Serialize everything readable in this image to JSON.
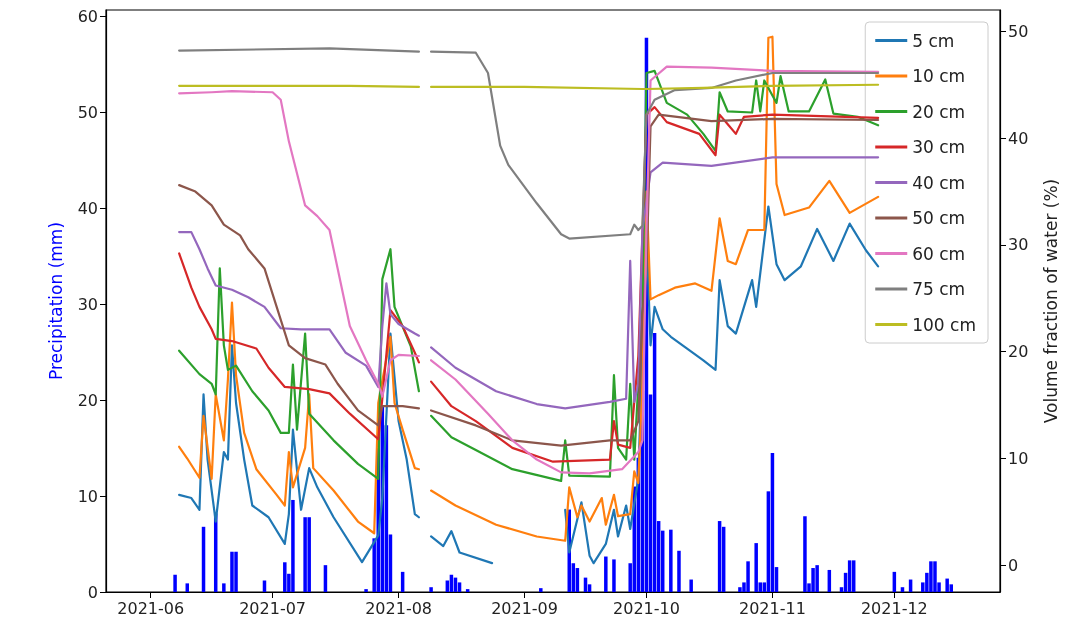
{
  "chart_data": {
    "type": "line",
    "ylabel": "Precipitation (mm)",
    "y2label": "Volume fraction of water (%)",
    "xlim": [
      "2021-05-21",
      "2021-12-27"
    ],
    "xticks": [
      {
        "value": "2021-06-01",
        "label": "2021-06"
      },
      {
        "value": "2021-07-01",
        "label": "2021-07"
      },
      {
        "value": "2021-08-01",
        "label": "2021-08"
      },
      {
        "value": "2021-09-01",
        "label": "2021-09"
      },
      {
        "value": "2021-10-01",
        "label": "2021-10"
      },
      {
        "value": "2021-11-01",
        "label": "2021-11"
      },
      {
        "value": "2021-12-01",
        "label": "2021-12"
      }
    ],
    "ylim": [
      0,
      60.7
    ],
    "yticks": [
      0,
      10,
      20,
      30,
      40,
      50,
      60
    ],
    "y2lim": [
      -2.5,
      52
    ],
    "y2ticks": [
      0,
      10,
      20,
      30,
      40,
      50
    ],
    "legend": "top right",
    "marker": "none",
    "line_style": "solid",
    "series": [
      {
        "type": "bar",
        "axis": "y",
        "color": "#0000ff",
        "x": [
          "2021-06-07",
          "2021-06-10",
          "2021-06-14",
          "2021-06-17",
          "2021-06-19",
          "2021-06-21",
          "2021-06-22",
          "2021-06-29",
          "2021-07-04",
          "2021-07-05",
          "2021-07-06",
          "2021-07-09",
          "2021-07-10",
          "2021-07-14",
          "2021-07-24",
          "2021-07-26",
          "2021-07-27",
          "2021-07-28",
          "2021-07-29",
          "2021-07-30",
          "2021-08-02",
          "2021-08-09",
          "2021-08-13",
          "2021-08-14",
          "2021-08-15",
          "2021-08-16",
          "2021-08-18",
          "2021-09-05",
          "2021-09-12",
          "2021-09-13",
          "2021-09-14",
          "2021-09-16",
          "2021-09-17",
          "2021-09-21",
          "2021-09-23",
          "2021-09-27",
          "2021-09-28",
          "2021-09-29",
          "2021-09-30",
          "2021-10-01",
          "2021-10-02",
          "2021-10-03",
          "2021-10-04",
          "2021-10-05",
          "2021-10-07",
          "2021-10-09",
          "2021-10-12",
          "2021-10-19",
          "2021-10-20",
          "2021-10-24",
          "2021-10-25",
          "2021-10-26",
          "2021-10-28",
          "2021-10-29",
          "2021-10-30",
          "2021-10-31",
          "2021-11-01",
          "2021-11-02",
          "2021-11-09",
          "2021-11-10",
          "2021-11-11",
          "2021-11-12",
          "2021-11-15",
          "2021-11-18",
          "2021-11-19",
          "2021-11-20",
          "2021-11-21",
          "2021-12-01",
          "2021-12-03",
          "2021-12-05",
          "2021-12-08",
          "2021-12-09",
          "2021-12-10",
          "2021-12-11",
          "2021-12-12",
          "2021-12-14",
          "2021-12-15"
        ],
        "values": [
          1.8,
          0.9,
          6.8,
          8.2,
          0.9,
          4.2,
          4.2,
          1.2,
          3.1,
          1.9,
          9.6,
          7.8,
          7.8,
          2.8,
          0.3,
          5.6,
          15.0,
          19.4,
          17.4,
          6.0,
          2.1,
          0.5,
          1.2,
          1.8,
          1.5,
          1.0,
          0.3,
          0.4,
          8.6,
          3.0,
          2.5,
          1.5,
          0.8,
          3.7,
          3.4,
          3.0,
          11.0,
          14.0,
          21.0,
          57.8,
          20.6,
          27.0,
          7.4,
          6.4,
          6.5,
          4.3,
          1.3,
          7.4,
          6.8,
          0.5,
          1.0,
          3.2,
          5.1,
          1.0,
          1.0,
          10.5,
          14.5,
          2.6,
          7.9,
          0.9,
          2.5,
          2.8,
          2.3,
          0.5,
          2.0,
          3.3,
          3.3,
          2.1,
          0.5,
          1.3,
          1.0,
          2.0,
          3.2,
          3.2,
          1.0,
          1.4,
          0.8
        ]
      },
      {
        "name": "5 cm",
        "axis": "y2",
        "color": "#1f77b4",
        "x": [
          "2021-06-08",
          "2021-06-11",
          "2021-06-13",
          "2021-06-14",
          "2021-06-15",
          "2021-06-17",
          "2021-06-19",
          "2021-06-20",
          "2021-06-21",
          "2021-06-22",
          "2021-06-24",
          "2021-06-26",
          "2021-06-30",
          "2021-07-04",
          "2021-07-05",
          "2021-07-06",
          "2021-07-08",
          "2021-07-10",
          "2021-07-12",
          "2021-07-16",
          "2021-07-23",
          "2021-07-27",
          "2021-07-28",
          "2021-07-30",
          "2021-08-01",
          "2021-08-03",
          "2021-08-05",
          "2021-08-06",
          "2021-08-07",
          "2021-08-09",
          "2021-08-12",
          "2021-08-14",
          "2021-08-16",
          "2021-08-24",
          "2021-08-25",
          "2021-09-11",
          "2021-09-12",
          "2021-09-15",
          "2021-09-17",
          "2021-09-18",
          "2021-09-21",
          "2021-09-23",
          "2021-09-24",
          "2021-09-26",
          "2021-09-27",
          "2021-09-29",
          "2021-09-30",
          "2021-10-01",
          "2021-10-02",
          "2021-10-03",
          "2021-10-05",
          "2021-10-07",
          "2021-10-11",
          "2021-10-15",
          "2021-10-18",
          "2021-10-19",
          "2021-10-21",
          "2021-10-23",
          "2021-10-27",
          "2021-10-28",
          "2021-10-31",
          "2021-11-02",
          "2021-11-04",
          "2021-11-08",
          "2021-11-12",
          "2021-11-16",
          "2021-11-20",
          "2021-11-24",
          "2021-11-27"
        ],
        "values": [
          6.6,
          6.3,
          5.2,
          16.0,
          9.9,
          4.1,
          10.6,
          9.9,
          20.6,
          15.2,
          9.9,
          5.6,
          4.5,
          2.0,
          4.8,
          12.7,
          5.2,
          9.1,
          7.3,
          4.5,
          0.3,
          2.8,
          6.3,
          21.7,
          13.5,
          9.9,
          4.8,
          4.5,
          null,
          2.7,
          1.8,
          3.2,
          1.2,
          0.2,
          null,
          5.2,
          1.2,
          5.9,
          0.9,
          0.2,
          2.0,
          5.2,
          2.7,
          5.6,
          3.4,
          8.1,
          20.6,
          31.4,
          20.6,
          24.2,
          22.1,
          21.4,
          20.3,
          19.2,
          18.3,
          26.7,
          22.4,
          21.7,
          26.7,
          24.2,
          33.6,
          28.2,
          26.7,
          28.0,
          31.5,
          28.5,
          32.0,
          29.5,
          28.0
        ]
      },
      {
        "name": "10 cm",
        "axis": "y2",
        "color": "#ff7f0e",
        "x": [
          "2021-06-08",
          "2021-06-10",
          "2021-06-13",
          "2021-06-14",
          "2021-06-16",
          "2021-06-17",
          "2021-06-19",
          "2021-06-20",
          "2021-06-21",
          "2021-06-22",
          "2021-06-24",
          "2021-06-27",
          "2021-07-02",
          "2021-07-04",
          "2021-07-05",
          "2021-07-06",
          "2021-07-09",
          "2021-07-10",
          "2021-07-11",
          "2021-07-16",
          "2021-07-22",
          "2021-07-26",
          "2021-07-27",
          "2021-07-30",
          "2021-07-31",
          "2021-08-02",
          "2021-08-05",
          "2021-08-06",
          "2021-08-07",
          "2021-08-09",
          "2021-08-15",
          "2021-08-25",
          "2021-09-04",
          "2021-09-11",
          "2021-09-12",
          "2021-09-14",
          "2021-09-15",
          "2021-09-17",
          "2021-09-20",
          "2021-09-21",
          "2021-09-23",
          "2021-09-24",
          "2021-09-27",
          "2021-09-28",
          "2021-09-29",
          "2021-09-30",
          "2021-10-01",
          "2021-10-02",
          "2021-10-04",
          "2021-10-08",
          "2021-10-13",
          "2021-10-17",
          "2021-10-19",
          "2021-10-21",
          "2021-10-23",
          "2021-10-26",
          "2021-10-30",
          "2021-10-31",
          "2021-11-01",
          "2021-11-02",
          "2021-11-04",
          "2021-11-10",
          "2021-11-15",
          "2021-11-20",
          "2021-11-27"
        ],
        "values": [
          11.1,
          10.0,
          8.2,
          14.0,
          8.1,
          16.0,
          11.7,
          17.4,
          24.6,
          17.8,
          12.4,
          9.0,
          6.6,
          5.6,
          10.6,
          7.3,
          11.0,
          16.0,
          9.1,
          7.0,
          4.1,
          3.0,
          15.2,
          21.4,
          15.2,
          12.7,
          9.1,
          9.0,
          null,
          7.0,
          5.6,
          3.8,
          2.7,
          2.3,
          7.3,
          4.5,
          5.6,
          4.1,
          6.3,
          3.8,
          6.6,
          4.6,
          4.8,
          8.8,
          7.7,
          17.0,
          35.0,
          24.9,
          25.3,
          26.0,
          26.4,
          25.7,
          32.5,
          28.5,
          28.2,
          31.4,
          31.4,
          49.4,
          49.5,
          35.7,
          32.8,
          33.5,
          36.0,
          33.0,
          34.5
        ]
      },
      {
        "name": "20 cm",
        "axis": "y2",
        "color": "#2ca02c",
        "x": [
          "2021-06-08",
          "2021-06-13",
          "2021-06-16",
          "2021-06-17",
          "2021-06-18",
          "2021-06-19",
          "2021-06-20",
          "2021-06-22",
          "2021-06-26",
          "2021-06-30",
          "2021-07-03",
          "2021-07-05",
          "2021-07-06",
          "2021-07-07",
          "2021-07-09",
          "2021-07-10",
          "2021-07-16",
          "2021-07-22",
          "2021-07-27",
          "2021-07-28",
          "2021-07-30",
          "2021-07-31",
          "2021-08-04",
          "2021-08-06",
          "2021-08-07",
          "2021-08-09",
          "2021-08-14",
          "2021-08-20",
          "2021-08-29",
          "2021-09-10",
          "2021-09-11",
          "2021-09-12",
          "2021-09-22",
          "2021-09-23",
          "2021-09-24",
          "2021-09-26",
          "2021-09-27",
          "2021-09-28",
          "2021-09-30",
          "2021-10-01",
          "2021-10-03",
          "2021-10-06",
          "2021-10-11",
          "2021-10-15",
          "2021-10-18",
          "2021-10-19",
          "2021-10-21",
          "2021-10-27",
          "2021-10-28",
          "2021-10-29",
          "2021-10-30",
          "2021-11-02",
          "2021-11-03",
          "2021-11-05",
          "2021-11-10",
          "2021-11-14",
          "2021-11-16",
          "2021-11-22",
          "2021-11-27"
        ],
        "values": [
          20.1,
          17.9,
          17.0,
          16.0,
          27.8,
          20.6,
          18.3,
          18.7,
          16.3,
          14.5,
          12.4,
          12.4,
          18.8,
          12.7,
          21.7,
          14.2,
          11.7,
          9.5,
          8.1,
          26.8,
          29.6,
          24.2,
          20.5,
          16.3,
          null,
          14.0,
          12.0,
          10.8,
          9.0,
          7.9,
          11.7,
          8.4,
          8.3,
          17.8,
          11.0,
          9.9,
          17.0,
          9.9,
          24.2,
          46.1,
          46.3,
          43.3,
          42.2,
          40.4,
          38.8,
          44.3,
          42.5,
          42.4,
          45.4,
          42.5,
          45.4,
          43.3,
          45.8,
          42.5,
          42.5,
          45.5,
          42.3,
          42.0,
          41.2
        ]
      },
      {
        "name": "30 cm",
        "axis": "y2",
        "color": "#d62728",
        "x": [
          "2021-06-08",
          "2021-06-11",
          "2021-06-13",
          "2021-06-16",
          "2021-06-17",
          "2021-06-21",
          "2021-06-27",
          "2021-06-30",
          "2021-07-04",
          "2021-07-10",
          "2021-07-15",
          "2021-07-20",
          "2021-07-27",
          "2021-07-28",
          "2021-07-30",
          "2021-08-02",
          "2021-08-05",
          "2021-08-06",
          "2021-08-07",
          "2021-08-09",
          "2021-08-14",
          "2021-08-20",
          "2021-08-29",
          "2021-09-08",
          "2021-09-22",
          "2021-09-23",
          "2021-09-24",
          "2021-09-27",
          "2021-09-29",
          "2021-10-01",
          "2021-10-03",
          "2021-10-06",
          "2021-10-14",
          "2021-10-18",
          "2021-10-19",
          "2021-10-21",
          "2021-10-23",
          "2021-10-25",
          "2021-11-01",
          "2021-11-27"
        ],
        "values": [
          29.2,
          26.0,
          24.2,
          22.1,
          21.2,
          21.0,
          20.3,
          18.5,
          16.7,
          16.5,
          16.1,
          14.2,
          11.8,
          15.6,
          23.9,
          22.4,
          19.9,
          19.0,
          null,
          17.2,
          14.9,
          13.5,
          11.0,
          9.7,
          9.9,
          13.5,
          11.3,
          11.0,
          19.6,
          42.2,
          42.9,
          41.5,
          40.4,
          38.4,
          42.2,
          41.3,
          40.4,
          42.0,
          42.2,
          41.9
        ]
      },
      {
        "name": "40 cm",
        "axis": "y2",
        "color": "#9467bd",
        "x": [
          "2021-06-08",
          "2021-06-11",
          "2021-06-13",
          "2021-06-15",
          "2021-06-17",
          "2021-06-21",
          "2021-06-25",
          "2021-06-29",
          "2021-07-03",
          "2021-07-08",
          "2021-07-15",
          "2021-07-19",
          "2021-07-24",
          "2021-07-27",
          "2021-07-28",
          "2021-07-29",
          "2021-07-30",
          "2021-08-01",
          "2021-08-05",
          "2021-08-06",
          "2021-08-07",
          "2021-08-09",
          "2021-08-15",
          "2021-08-25",
          "2021-09-04",
          "2021-09-11",
          "2021-09-22",
          "2021-09-26",
          "2021-09-27",
          "2021-09-28",
          "2021-09-29",
          "2021-09-30",
          "2021-10-02",
          "2021-10-05",
          "2021-10-17",
          "2021-11-01",
          "2021-11-27"
        ],
        "values": [
          31.2,
          31.2,
          29.6,
          27.8,
          26.2,
          25.8,
          25.1,
          24.2,
          22.2,
          22.1,
          22.1,
          19.9,
          18.7,
          16.7,
          22.4,
          26.4,
          23.5,
          22.6,
          21.7,
          21.5,
          null,
          20.4,
          18.5,
          16.3,
          15.1,
          14.7,
          15.3,
          15.6,
          28.5,
          15.3,
          17.0,
          31.4,
          36.8,
          37.7,
          37.4,
          38.2,
          38.2
        ]
      },
      {
        "name": "50 cm",
        "axis": "y2",
        "color": "#8c564b",
        "x": [
          "2021-06-08",
          "2021-06-12",
          "2021-06-16",
          "2021-06-19",
          "2021-06-23",
          "2021-06-25",
          "2021-06-29",
          "2021-07-02",
          "2021-07-05",
          "2021-07-09",
          "2021-07-14",
          "2021-07-17",
          "2021-07-22",
          "2021-07-27",
          "2021-07-28",
          "2021-07-30",
          "2021-08-02",
          "2021-08-06",
          "2021-08-07",
          "2021-08-09",
          "2021-08-20",
          "2021-08-29",
          "2021-09-10",
          "2021-09-22",
          "2021-09-27",
          "2021-09-29",
          "2021-09-30",
          "2021-10-01",
          "2021-10-02",
          "2021-10-04",
          "2021-10-17",
          "2021-11-01",
          "2021-11-27"
        ],
        "values": [
          35.6,
          35.0,
          33.7,
          31.9,
          30.9,
          29.6,
          27.8,
          24.2,
          20.6,
          19.4,
          18.8,
          17.0,
          14.5,
          13.1,
          14.9,
          14.9,
          14.9,
          14.7,
          null,
          14.5,
          13.1,
          11.7,
          11.2,
          11.7,
          11.7,
          13.5,
          23.5,
          27.8,
          41.1,
          42.2,
          41.6,
          41.8,
          41.7
        ]
      },
      {
        "name": "60 cm",
        "axis": "y2",
        "color": "#e377c2",
        "x": [
          "2021-06-08",
          "2021-06-16",
          "2021-06-21",
          "2021-07-01",
          "2021-07-03",
          "2021-07-05",
          "2021-07-09",
          "2021-07-12",
          "2021-07-15",
          "2021-07-17",
          "2021-07-20",
          "2021-07-24",
          "2021-07-27",
          "2021-07-28",
          "2021-07-30",
          "2021-08-01",
          "2021-08-06",
          "2021-08-07",
          "2021-08-09",
          "2021-08-15",
          "2021-08-23",
          "2021-08-29",
          "2021-09-04",
          "2021-09-10",
          "2021-09-17",
          "2021-09-25",
          "2021-09-29",
          "2021-09-30",
          "2021-10-01",
          "2021-10-02",
          "2021-10-06",
          "2021-10-17",
          "2021-11-01",
          "2021-11-27"
        ],
        "values": [
          44.2,
          44.3,
          44.4,
          44.3,
          43.6,
          39.7,
          33.7,
          32.7,
          31.4,
          27.8,
          22.4,
          19.2,
          17.0,
          15.8,
          19.2,
          19.7,
          19.6,
          null,
          19.2,
          17.4,
          14.2,
          11.7,
          9.9,
          8.7,
          8.6,
          9.0,
          10.6,
          11.7,
          31.4,
          45.4,
          46.7,
          46.6,
          46.3,
          46.2
        ]
      },
      {
        "name": "75 cm",
        "axis": "y2",
        "color": "#7f7f7f",
        "x": [
          "2021-06-08",
          "2021-07-15",
          "2021-08-06",
          "2021-08-07",
          "2021-08-09",
          "2021-08-20",
          "2021-08-23",
          "2021-08-26",
          "2021-08-28",
          "2021-09-04",
          "2021-09-10",
          "2021-09-12",
          "2021-09-27",
          "2021-09-28",
          "2021-09-29",
          "2021-09-30",
          "2021-10-01",
          "2021-10-03",
          "2021-10-08",
          "2021-10-17",
          "2021-10-23",
          "2021-11-01",
          "2021-11-27"
        ],
        "values": [
          48.2,
          48.4,
          48.1,
          null,
          48.1,
          48.0,
          46.1,
          39.3,
          37.5,
          33.9,
          31.0,
          30.6,
          31.0,
          31.9,
          31.4,
          31.8,
          42.2,
          43.6,
          44.5,
          44.7,
          45.4,
          46.1,
          46.1
        ]
      },
      {
        "name": "100 cm",
        "axis": "y2",
        "color": "#bcbd22",
        "x": [
          "2021-06-08",
          "2021-07-01",
          "2021-07-20",
          "2021-08-06",
          "2021-08-07",
          "2021-08-09",
          "2021-09-01",
          "2021-09-30",
          "2021-10-01",
          "2021-10-15",
          "2021-11-01",
          "2021-11-27"
        ],
        "values": [
          44.9,
          44.9,
          44.9,
          44.8,
          null,
          44.8,
          44.8,
          44.6,
          44.6,
          44.7,
          44.9,
          45.0
        ]
      }
    ]
  }
}
